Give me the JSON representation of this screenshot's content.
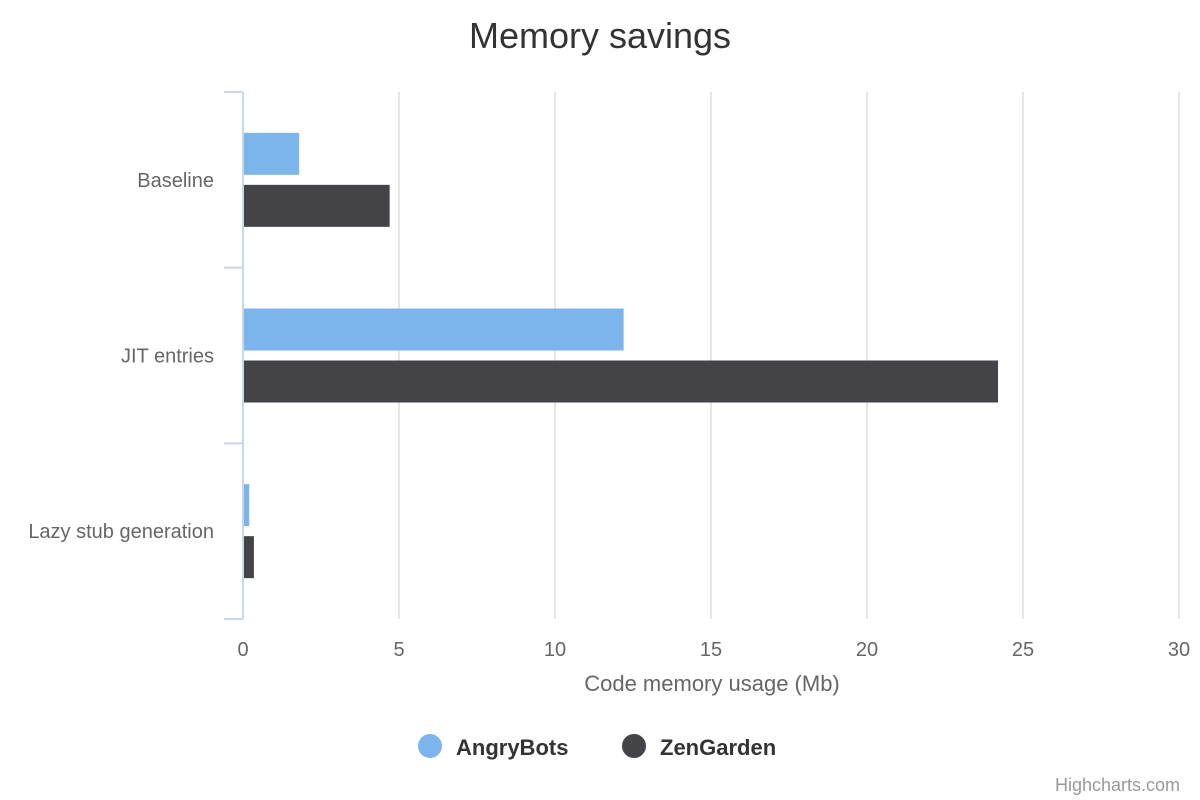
{
  "chart_data": {
    "type": "bar",
    "orientation": "horizontal",
    "title": "Memory savings",
    "categories": [
      "Baseline",
      "JIT entries",
      "Lazy stub generation"
    ],
    "series": [
      {
        "name": "AngryBots",
        "color": "#7cb5ec",
        "values": [
          1.8,
          12.2,
          0.2
        ]
      },
      {
        "name": "ZenGarden",
        "color": "#434348",
        "values": [
          4.7,
          24.2,
          0.35
        ]
      }
    ],
    "xlabel": "Code memory usage (Mb)",
    "xlim": [
      0,
      30
    ],
    "xticks": [
      0,
      5,
      10,
      15,
      20,
      25,
      30
    ],
    "grid": true,
    "legend_position": "bottom-center"
  },
  "credits": "Highcharts.com"
}
